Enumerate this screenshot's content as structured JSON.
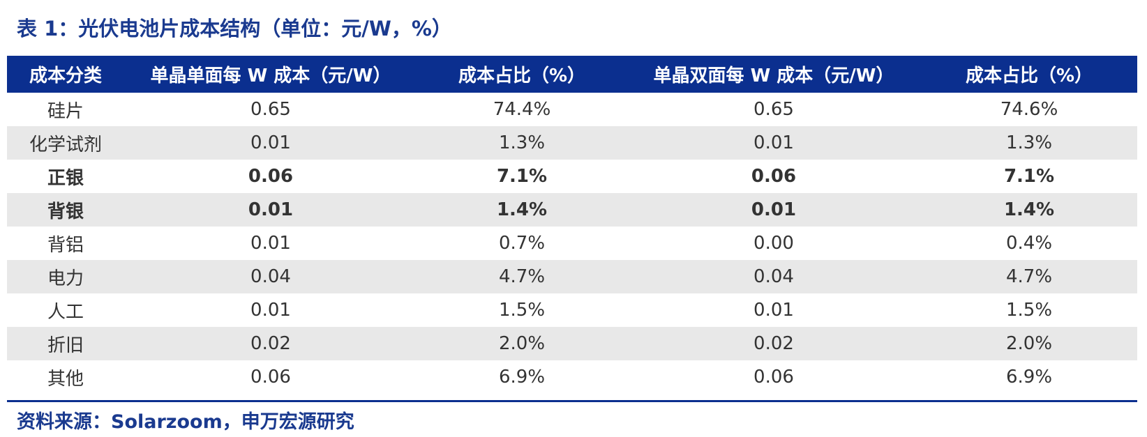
{
  "title": "表 1：光伏电池片成本结构（单位：元/W，%）",
  "table": {
    "headers": [
      "成本分类",
      "单晶单面每 W 成本（元/W）",
      "成本占比（%）",
      "单晶双面每 W 成本（元/W）",
      "成本占比（%）"
    ],
    "rows": [
      {
        "category": "硅片",
        "mono_cost": "0.65",
        "mono_share": "74.4%",
        "bifacial_cost": "0.65",
        "bifacial_share": "74.6%",
        "bold": false
      },
      {
        "category": "化学试剂",
        "mono_cost": "0.01",
        "mono_share": "1.3%",
        "bifacial_cost": "0.01",
        "bifacial_share": "1.3%",
        "bold": false
      },
      {
        "category": "正银",
        "mono_cost": "0.06",
        "mono_share": "7.1%",
        "bifacial_cost": "0.06",
        "bifacial_share": "7.1%",
        "bold": true
      },
      {
        "category": "背银",
        "mono_cost": "0.01",
        "mono_share": "1.4%",
        "bifacial_cost": "0.01",
        "bifacial_share": "1.4%",
        "bold": true
      },
      {
        "category": "背铝",
        "mono_cost": "0.01",
        "mono_share": "0.7%",
        "bifacial_cost": "0.00",
        "bifacial_share": "0.4%",
        "bold": false
      },
      {
        "category": "电力",
        "mono_cost": "0.04",
        "mono_share": "4.7%",
        "bifacial_cost": "0.04",
        "bifacial_share": "4.7%",
        "bold": false
      },
      {
        "category": "人工",
        "mono_cost": "0.01",
        "mono_share": "1.5%",
        "bifacial_cost": "0.01",
        "bifacial_share": "1.5%",
        "bold": false
      },
      {
        "category": "折旧",
        "mono_cost": "0.02",
        "mono_share": "2.0%",
        "bifacial_cost": "0.02",
        "bifacial_share": "2.0%",
        "bold": false
      },
      {
        "category": "其他",
        "mono_cost": "0.06",
        "mono_share": "6.9%",
        "bifacial_cost": "0.06",
        "bifacial_share": "6.9%",
        "bold": false
      }
    ]
  },
  "source": "资料来源：Solarzoom，申万宏源研究",
  "colors": {
    "header_bg": "#0b2f8f",
    "title_text": "#1a3a8f",
    "stripe": "#e8e8e8"
  }
}
